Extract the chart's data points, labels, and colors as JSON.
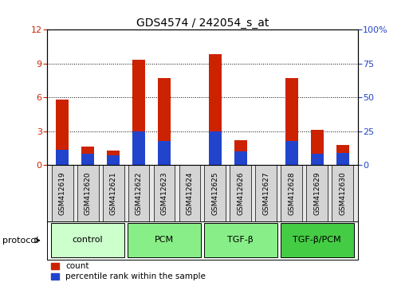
{
  "title": "GDS4574 / 242054_s_at",
  "samples": [
    "GSM412619",
    "GSM412620",
    "GSM412621",
    "GSM412622",
    "GSM412623",
    "GSM412624",
    "GSM412625",
    "GSM412626",
    "GSM412627",
    "GSM412628",
    "GSM412629",
    "GSM412630"
  ],
  "count_values": [
    5.8,
    1.6,
    1.3,
    9.3,
    7.7,
    0.0,
    9.8,
    2.2,
    0.0,
    7.7,
    3.1,
    1.8
  ],
  "percentile_values": [
    11,
    8,
    7,
    25,
    18,
    0,
    25,
    10,
    0,
    18,
    8,
    9
  ],
  "count_color": "#cc2200",
  "percentile_color": "#2244cc",
  "left_ylim": [
    0,
    12
  ],
  "right_ylim": [
    0,
    100
  ],
  "left_yticks": [
    0,
    3,
    6,
    9,
    12
  ],
  "right_yticks": [
    0,
    25,
    50,
    75,
    100
  ],
  "right_yticklabels": [
    "0",
    "25",
    "50",
    "75",
    "100%"
  ],
  "groups": [
    {
      "label": "control",
      "start": 0,
      "end": 3,
      "color": "#ccffcc"
    },
    {
      "label": "PCM",
      "start": 3,
      "end": 6,
      "color": "#88ee88"
    },
    {
      "label": "TGF-β",
      "start": 6,
      "end": 9,
      "color": "#88ee88"
    },
    {
      "label": "TGF-β/PCM",
      "start": 9,
      "end": 12,
      "color": "#44cc44"
    }
  ],
  "protocol_label": "protocol",
  "legend_count": "count",
  "legend_percentile": "percentile rank within the sample",
  "bar_width": 0.5,
  "bg_color": "#ffffff",
  "plot_bg": "#ffffff",
  "tick_label_color_left": "#cc2200",
  "tick_label_color_right": "#2244cc",
  "sample_box_color": "#cccccc",
  "group_row_bg": "#f8fff8"
}
